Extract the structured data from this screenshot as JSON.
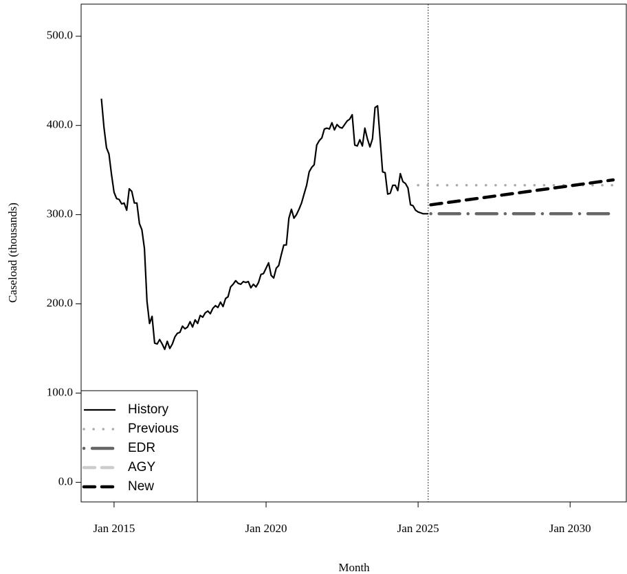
{
  "chart_data": {
    "type": "line",
    "x_label": "Month",
    "y_label": "Caseload (thousands)",
    "xlim": [
      "2013-12",
      "2031-12"
    ],
    "ylim": [
      -22,
      536
    ],
    "xticks": [
      {
        "value": "2015-01",
        "label": "Jan 2015"
      },
      {
        "value": "2020-01",
        "label": "Jan 2020"
      },
      {
        "value": "2025-01",
        "label": "Jan 2025"
      },
      {
        "value": "2030-01",
        "label": "Jan 2030"
      }
    ],
    "yticks": [
      {
        "value": 0,
        "label": "0.0"
      },
      {
        "value": 100,
        "label": "100.0"
      },
      {
        "value": 200,
        "label": "200.0"
      },
      {
        "value": 300,
        "label": "300.0"
      },
      {
        "value": 400,
        "label": "400.0"
      },
      {
        "value": 500,
        "label": "500.0"
      }
    ],
    "vline_x": "2025-05",
    "legend": "bottom-left",
    "series": [
      {
        "name": "History",
        "color": "#000000",
        "linestyle": "solid",
        "linewidth": 2.2,
        "x": [
          "2014-08",
          "2014-09",
          "2014-10",
          "2014-11",
          "2014-12",
          "2015-01",
          "2015-02",
          "2015-03",
          "2015-04",
          "2015-05",
          "2015-06",
          "2015-07",
          "2015-08",
          "2015-09",
          "2015-10",
          "2015-11",
          "2015-12",
          "2016-01",
          "2016-02",
          "2016-03",
          "2016-04",
          "2016-05",
          "2016-06",
          "2016-07",
          "2016-08",
          "2016-09",
          "2016-10",
          "2016-11",
          "2016-12",
          "2017-01",
          "2017-02",
          "2017-03",
          "2017-04",
          "2017-05",
          "2017-06",
          "2017-07",
          "2017-08",
          "2017-09",
          "2017-10",
          "2017-11",
          "2017-12",
          "2018-01",
          "2018-02",
          "2018-03",
          "2018-04",
          "2018-05",
          "2018-06",
          "2018-07",
          "2018-08",
          "2018-09",
          "2018-10",
          "2018-11",
          "2018-12",
          "2019-01",
          "2019-02",
          "2019-03",
          "2019-04",
          "2019-05",
          "2019-06",
          "2019-07",
          "2019-08",
          "2019-09",
          "2019-10",
          "2019-11",
          "2019-12",
          "2020-01",
          "2020-02",
          "2020-03",
          "2020-04",
          "2020-05",
          "2020-06",
          "2020-07",
          "2020-08",
          "2020-09",
          "2020-10",
          "2020-11",
          "2020-12",
          "2021-01",
          "2021-02",
          "2021-03",
          "2021-04",
          "2021-05",
          "2021-06",
          "2021-07",
          "2021-08",
          "2021-09",
          "2021-10",
          "2021-11",
          "2021-12",
          "2022-01",
          "2022-02",
          "2022-03",
          "2022-04",
          "2022-05",
          "2022-06",
          "2022-07",
          "2022-08",
          "2022-09",
          "2022-10",
          "2022-11",
          "2022-12",
          "2023-01",
          "2023-02",
          "2023-03",
          "2023-04",
          "2023-05",
          "2023-06",
          "2023-07",
          "2023-08",
          "2023-09",
          "2023-10",
          "2023-11",
          "2023-12",
          "2024-01",
          "2024-02",
          "2024-03",
          "2024-04",
          "2024-05",
          "2024-06",
          "2024-07",
          "2024-08",
          "2024-09",
          "2024-10",
          "2024-11",
          "2024-12",
          "2025-01",
          "2025-02",
          "2025-03",
          "2025-04",
          "2025-05"
        ],
        "values": [
          430,
          398,
          375,
          368,
          345,
          325,
          318,
          317,
          312,
          313,
          305,
          329,
          326,
          313,
          313,
          290,
          283,
          262,
          203,
          178,
          186,
          156,
          155,
          160,
          155,
          149,
          158,
          150,
          155,
          163,
          167,
          168,
          175,
          172,
          174,
          180,
          174,
          182,
          178,
          187,
          185,
          190,
          192,
          189,
          195,
          198,
          196,
          202,
          197,
          206,
          208,
          219,
          222,
          226,
          223,
          222,
          225,
          224,
          225,
          218,
          222,
          219,
          224,
          233,
          234,
          240,
          246,
          232,
          229,
          240,
          243,
          255,
          266,
          266,
          296,
          306,
          296,
          300,
          306,
          313,
          323,
          333,
          348,
          353,
          356,
          378,
          383,
          386,
          396,
          397,
          396,
          403,
          395,
          401,
          398,
          397,
          401,
          405,
          407,
          412,
          378,
          377,
          384,
          377,
          397,
          385,
          376,
          385,
          420,
          422,
          385,
          348,
          347,
          323,
          324,
          333,
          333,
          327,
          346,
          337,
          335,
          330,
          311,
          310,
          305,
          303,
          302,
          301,
          301,
          301
        ]
      },
      {
        "name": "Previous",
        "color": "#aaaaaa",
        "linestyle": "dotted",
        "linewidth": 3.5,
        "x": [
          "2025-01",
          "2031-06"
        ],
        "values": [
          333,
          333
        ]
      },
      {
        "name": "EDR",
        "color": "#666666",
        "linestyle": "dashdot",
        "linewidth": 4.5,
        "x": [
          "2025-06",
          "2031-06"
        ],
        "values": [
          301,
          301
        ]
      },
      {
        "name": "AGY",
        "color": "#cccccc",
        "linestyle": "dashed",
        "linewidth": 4.5,
        "x": [
          "2025-06",
          "2031-06"
        ],
        "values": [
          311,
          339
        ]
      },
      {
        "name": "New",
        "color": "#000000",
        "linestyle": "dashed",
        "linewidth": 4.5,
        "x": [
          "2025-06",
          "2031-06"
        ],
        "values": [
          311,
          339
        ]
      }
    ]
  }
}
